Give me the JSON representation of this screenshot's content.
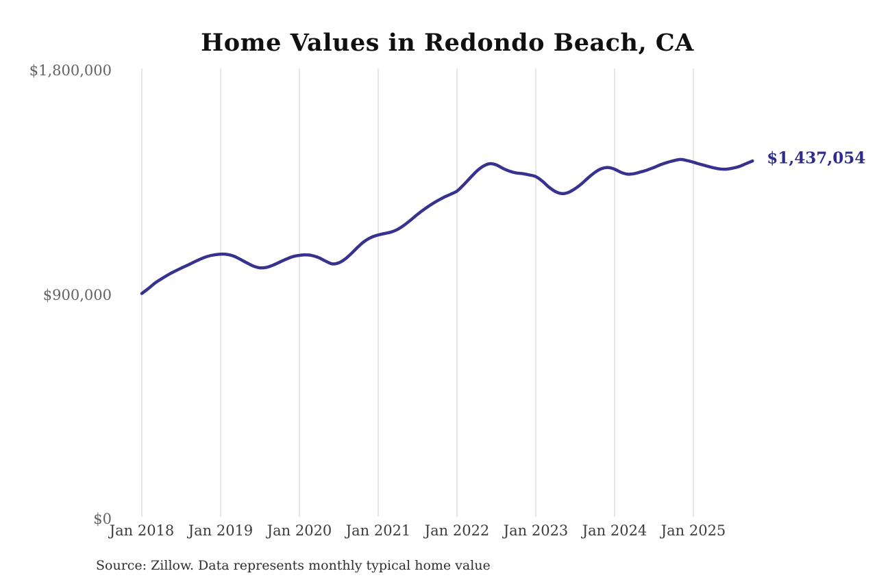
{
  "page": {
    "background": "#ffffff"
  },
  "chart_data": {
    "type": "line",
    "title": "Home Values in Redondo Beach, CA",
    "source": "Source: Zillow. Data represents monthly typical home value",
    "end_label": "$1,437,054",
    "latest_value": 1437054,
    "ylim": [
      0,
      1800000
    ],
    "grid": "vertical-only",
    "legend": "none",
    "line_color": "#38328f",
    "end_label_color": "#2d2b8c",
    "gridline_color": "#cccccc",
    "y_ticks": [
      {
        "value": 1800000,
        "label": "$1,800,000"
      },
      {
        "value": 900000,
        "label": "$900,000"
      },
      {
        "value": 0,
        "label": "$0"
      }
    ],
    "x_tick_labels": [
      "Jan 2018",
      "Jan 2019",
      "Jan 2020",
      "Jan 2021",
      "Jan 2022",
      "Jan 2023",
      "Jan 2024",
      "Jan 2025"
    ],
    "x_freq": "monthly",
    "x": [
      "2018-01",
      "2018-02",
      "2018-03",
      "2018-04",
      "2018-05",
      "2018-06",
      "2018-07",
      "2018-08",
      "2018-09",
      "2018-10",
      "2018-11",
      "2018-12",
      "2019-01",
      "2019-02",
      "2019-03",
      "2019-04",
      "2019-05",
      "2019-06",
      "2019-07",
      "2019-08",
      "2019-09",
      "2019-10",
      "2019-11",
      "2019-12",
      "2020-01",
      "2020-02",
      "2020-03",
      "2020-04",
      "2020-05",
      "2020-06",
      "2020-07",
      "2020-08",
      "2020-09",
      "2020-10",
      "2020-11",
      "2020-12",
      "2021-01",
      "2021-02",
      "2021-03",
      "2021-04",
      "2021-05",
      "2021-06",
      "2021-07",
      "2021-08",
      "2021-09",
      "2021-10",
      "2021-11",
      "2021-12",
      "2022-01",
      "2022-02",
      "2022-03",
      "2022-04",
      "2022-05",
      "2022-06",
      "2022-07",
      "2022-08",
      "2022-09",
      "2022-10",
      "2022-11",
      "2022-12",
      "2023-01",
      "2023-02",
      "2023-03",
      "2023-04",
      "2023-05",
      "2023-06",
      "2023-07",
      "2023-08",
      "2023-09",
      "2023-10",
      "2023-11",
      "2023-12",
      "2024-01",
      "2024-02",
      "2024-03",
      "2024-04",
      "2024-05",
      "2024-06",
      "2024-07",
      "2024-08",
      "2024-09",
      "2024-10",
      "2024-11",
      "2024-12",
      "2025-01",
      "2025-02",
      "2025-03",
      "2025-04",
      "2025-05",
      "2025-06",
      "2025-07",
      "2025-08",
      "2025-09",
      "2025-10"
    ],
    "series": [
      {
        "name": "Typical home value",
        "values": [
          905000,
          925000,
          947000,
          964000,
          980000,
          994000,
          1007000,
          1019000,
          1032000,
          1044000,
          1054000,
          1060000,
          1063000,
          1062000,
          1055000,
          1042000,
          1028000,
          1015000,
          1008000,
          1010000,
          1019000,
          1031000,
          1043000,
          1053000,
          1058000,
          1060000,
          1057000,
          1048000,
          1035000,
          1024000,
          1028000,
          1044000,
          1068000,
          1094000,
          1116000,
          1131000,
          1140000,
          1146000,
          1152000,
          1163000,
          1180000,
          1201000,
          1223000,
          1243000,
          1261000,
          1277000,
          1291000,
          1303000,
          1316000,
          1341000,
          1369000,
          1396000,
          1416000,
          1426000,
          1421000,
          1407000,
          1396000,
          1389000,
          1386000,
          1381000,
          1374000,
          1356000,
          1332000,
          1314000,
          1306000,
          1311000,
          1326000,
          1346000,
          1370000,
          1391000,
          1406000,
          1411000,
          1404000,
          1391000,
          1384000,
          1386000,
          1393000,
          1401000,
          1411000,
          1422000,
          1431000,
          1438000,
          1443000,
          1439000,
          1432000,
          1424000,
          1417000,
          1410000,
          1405000,
          1404000,
          1408000,
          1415000,
          1426000,
          1437054
        ]
      }
    ]
  }
}
